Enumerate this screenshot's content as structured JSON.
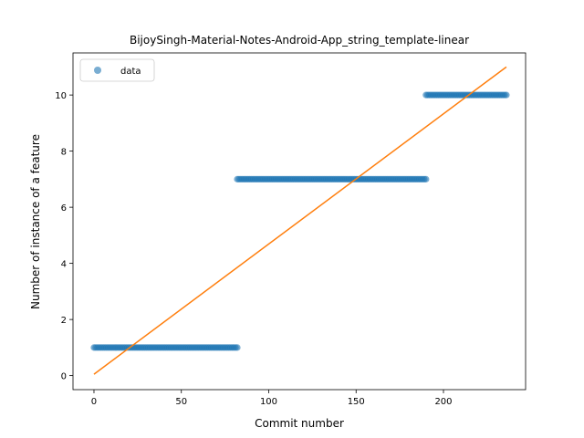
{
  "chart_data": {
    "type": "scatter",
    "title": "BijoySingh-Material-Notes-Android-App_string_template-linear",
    "xlabel": "Commit number",
    "ylabel": "Number of instance of a feature",
    "xlim": [
      -12,
      247
    ],
    "ylim": [
      -0.5,
      11.5
    ],
    "xticks": [
      0,
      50,
      100,
      150,
      200
    ],
    "yticks": [
      0,
      2,
      4,
      6,
      8,
      10
    ],
    "grid": false,
    "legend": {
      "position": "top-left",
      "entries": [
        "data"
      ]
    },
    "series": [
      {
        "name": "data",
        "kind": "scatter",
        "color": "#1f77b4",
        "segments": [
          {
            "x_start": 0,
            "x_end": 82,
            "y": 1
          },
          {
            "x_start": 82,
            "x_end": 190,
            "y": 7
          },
          {
            "x_start": 190,
            "x_end": 236,
            "y": 10
          }
        ]
      },
      {
        "kind": "line",
        "color": "#ff7f0e",
        "x": [
          0,
          236
        ],
        "y": [
          0.05,
          11.0
        ]
      }
    ]
  }
}
